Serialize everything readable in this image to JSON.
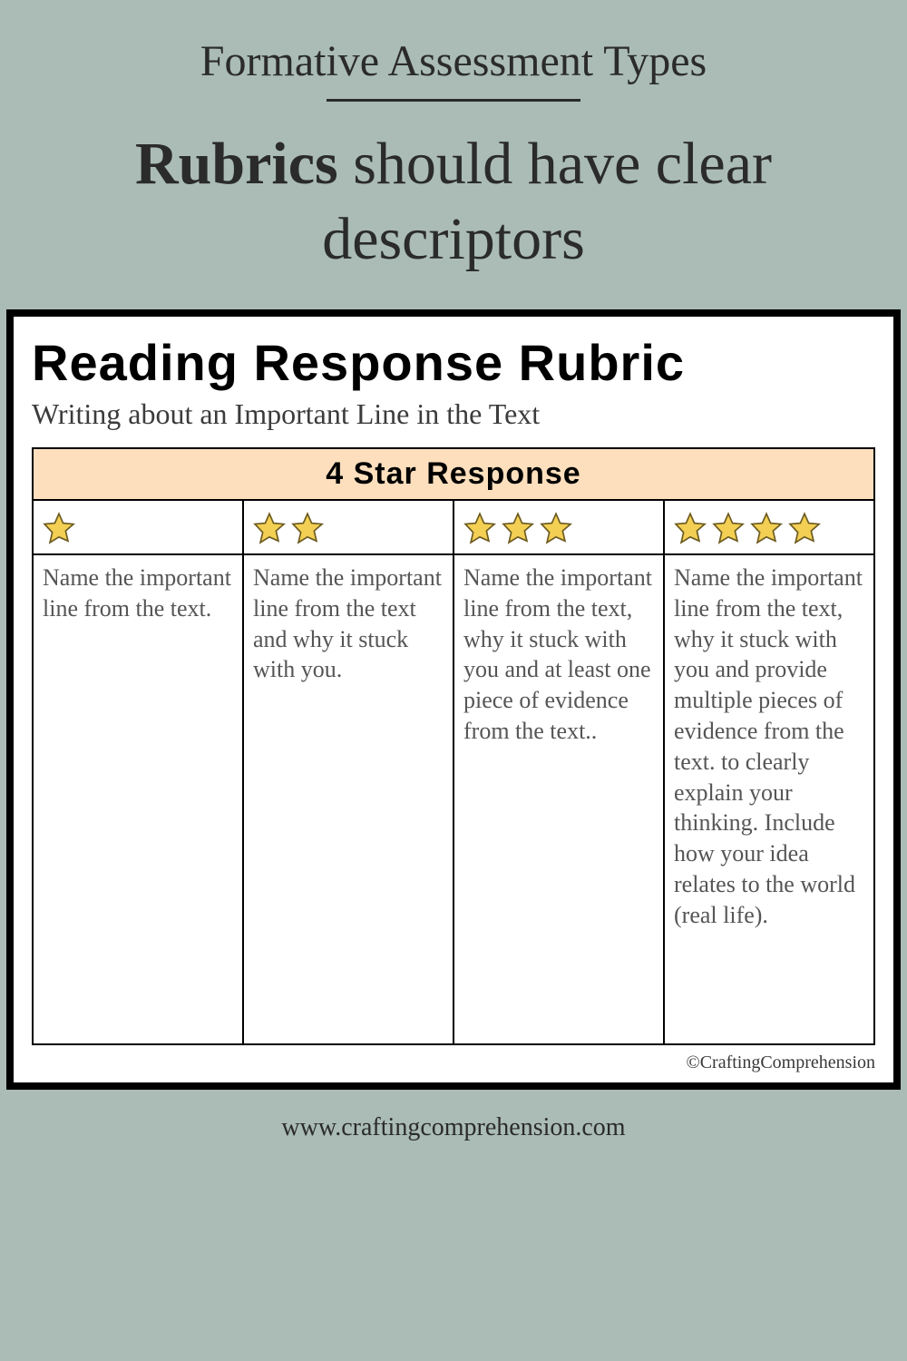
{
  "page": {
    "background_color": "#aabcb5",
    "script_title": "Formative Assessment Types",
    "headline_bold": "Rubrics",
    "headline_rest": " should have clear descriptors",
    "footer_url": "www.craftingcomprehension.com"
  },
  "rubric": {
    "card_bg": "#ffffff",
    "border_color": "#000000",
    "title": "Reading Response Rubric",
    "subtitle": "Writing about an Important Line in the Text",
    "header_label": "4 Star Response",
    "header_bg": "#fddfbd",
    "star_fill": "#f3cf54",
    "star_stroke": "#6b5a1f",
    "columns": [
      {
        "stars": 1,
        "desc": "Name the important line from the text."
      },
      {
        "stars": 2,
        "desc": "Name the important line from the text and why it stuck with you."
      },
      {
        "stars": 3,
        "desc": "Name the important line from the text, why it stuck with you and at least one piece of evidence from the text.."
      },
      {
        "stars": 4,
        "desc": "Name the important line from the text, why it stuck with you and provide multiple pieces of evidence from the text. to clearly explain your thinking. Include how your idea relates to the world (real life)."
      }
    ],
    "copyright": "©CraftingComprehension"
  }
}
